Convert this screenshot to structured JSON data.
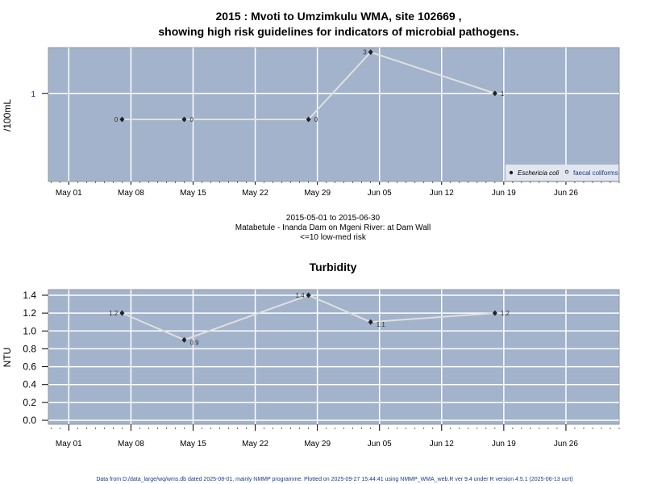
{
  "chart_data": [
    {
      "type": "line",
      "title": "2015 : Mvoti to Umzimkulu WMA, site 102669 ,",
      "subtitle": "showing high risk guidelines for indicators of microbial pathogens.",
      "ylabel": "/100mL",
      "xlabel": "",
      "yscale": "log",
      "yticks": [
        {
          "v": 1,
          "label": "1"
        }
      ],
      "ylim_log10": [
        -1.02,
        0.53
      ],
      "xlim_days_from_may01": [
        -2.3,
        62
      ],
      "x": [
        "2015-05-07",
        "2015-05-14",
        "2015-05-28",
        "2015-06-04",
        "2015-06-18"
      ],
      "x_days_from_may01": [
        6,
        13,
        27,
        34,
        48
      ],
      "series": [
        {
          "name": "Eschericia coli",
          "values": [
            0,
            0,
            0,
            3,
            1
          ],
          "labels": [
            "0",
            "0",
            "0",
            "3",
            "1"
          ]
        }
      ],
      "zero_plotted_as": 0.5,
      "legend": {
        "placement": "bottom-right",
        "entries": [
          "Eschericia coli",
          "faecal coliforms"
        ]
      },
      "grid": true
    },
    {
      "type": "line",
      "title": "Turbidity",
      "ylabel": "NTU",
      "xlabel": "",
      "yticks": [
        {
          "v": 0,
          "label": "0.0"
        },
        {
          "v": 0.2,
          "label": "0.2"
        },
        {
          "v": 0.4,
          "label": "0.4"
        },
        {
          "v": 0.6,
          "label": "0.6"
        },
        {
          "v": 0.8,
          "label": "0.8"
        },
        {
          "v": 1.0,
          "label": "1.0"
        },
        {
          "v": 1.2,
          "label": "1.2"
        },
        {
          "v": 1.4,
          "label": "1.4"
        }
      ],
      "ylim": [
        -0.045,
        1.463
      ],
      "xlim_days_from_may01": [
        -2.3,
        62
      ],
      "x": [
        "2015-05-07",
        "2015-05-14",
        "2015-05-28",
        "2015-06-04",
        "2015-06-18"
      ],
      "x_days_from_may01": [
        6,
        13,
        27,
        34,
        48
      ],
      "series": [
        {
          "name": "Turbidity",
          "values": [
            1.2,
            0.9,
            1.4,
            1.1,
            1.2
          ],
          "labels": [
            "1.2",
            "0.9",
            "1.4",
            "1.1",
            "1.2"
          ]
        }
      ],
      "grid": true
    }
  ],
  "xticks": [
    {
      "d": 0,
      "label": "May 01"
    },
    {
      "d": 7,
      "label": "May 08"
    },
    {
      "d": 14,
      "label": "May 15"
    },
    {
      "d": 21,
      "label": "May 22"
    },
    {
      "d": 28,
      "label": "May 29"
    },
    {
      "d": 35,
      "label": "Jun 05"
    },
    {
      "d": 42,
      "label": "Jun 12"
    },
    {
      "d": 49,
      "label": "Jun 19"
    },
    {
      "d": 56,
      "label": "Jun 26"
    }
  ],
  "info": {
    "range": "2015-05-01 to 2015-06-30",
    "site": "Matabetule - Inanda Dam on Mgeni River: at Dam Wall",
    "risk": "<=10 low-med risk"
  },
  "footer": "Data from D:/data_large/wq/wms.db dated 2025-08-01, mainly NMMP programme. Plotted on 2025-09-27 15:44:41 using NMMP_WMA_web.R ver 9.4 under R version 4.5.1 (2025-06-13 ucrt)",
  "colors": {
    "panel": "#a2b3cb",
    "grid": "#ffffff",
    "line": "#e0e0e0",
    "point": "#222222",
    "axis": "#1a3a8a",
    "footer": "#1a3a8a"
  }
}
